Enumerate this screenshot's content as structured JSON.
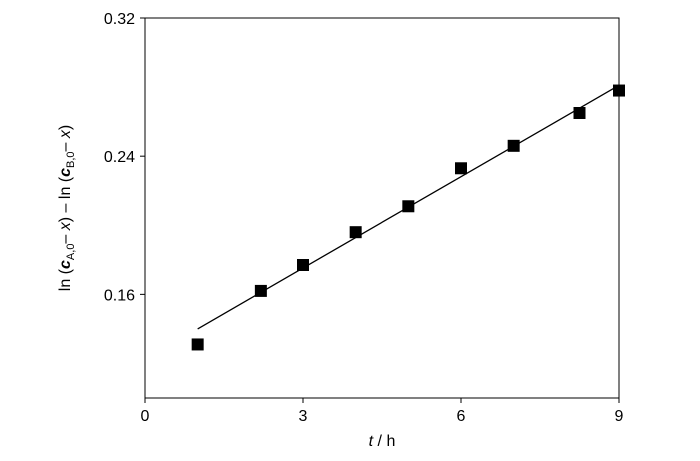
{
  "chart_data": {
    "type": "scatter",
    "x_label_parts": [
      "t",
      " / h"
    ],
    "y_label_parts": [
      "ln (",
      "c",
      "A,0",
      "– ",
      "x",
      ") – ln (",
      "c",
      "B,0",
      "– ",
      "x",
      ")"
    ],
    "series": [
      {
        "color": "#000000",
        "x": [
          1,
          2.2,
          3,
          4,
          5,
          6,
          7,
          8.25,
          9
        ],
        "values": [
          0.131,
          0.162,
          0.177,
          0.196,
          0.211,
          0.233,
          0.246,
          0.265,
          0.278
        ]
      }
    ],
    "fit": {
      "color": "#000000",
      "x": [
        1,
        9
      ],
      "values": [
        0.14,
        0.281
      ]
    },
    "xlim": [
      0,
      9
    ],
    "xticks": [
      0,
      3,
      6,
      9
    ],
    "ylim": [
      0.1,
      0.32
    ],
    "yticks": [
      0.16,
      0.24,
      0.32
    ],
    "grid": false
  }
}
